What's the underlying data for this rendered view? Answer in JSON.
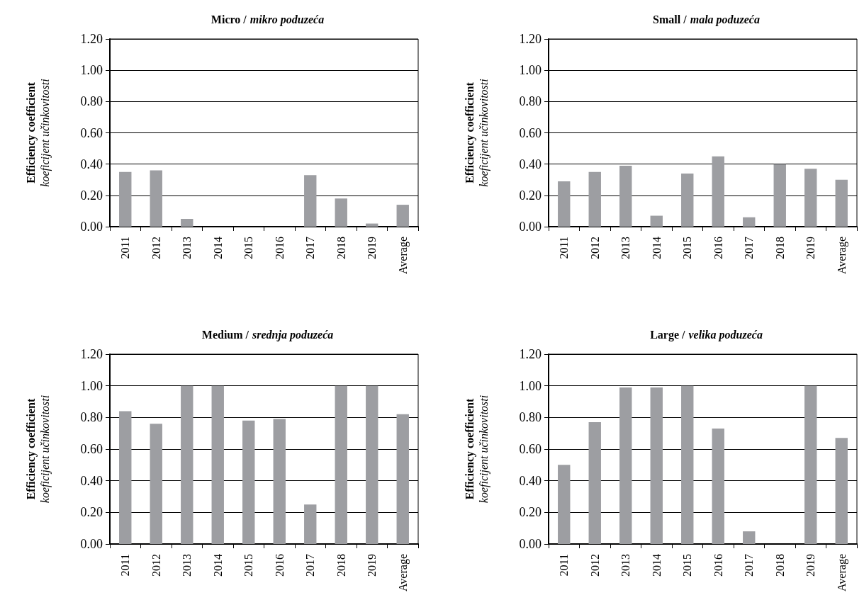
{
  "chart_data": [
    {
      "type": "bar",
      "title": "Micro / mikro poduzeća",
      "ylabel": "Efficiency coefficient\nkoeficijent učinkovitosti",
      "categories": [
        "2011",
        "2012",
        "2013",
        "2014",
        "2015",
        "2016",
        "2017",
        "2018",
        "2019",
        "Average"
      ],
      "color": "#9d9ea2",
      "values": [
        0.35,
        0.36,
        0.05,
        0,
        0,
        0,
        0.33,
        0.18,
        0.02,
        0.14
      ],
      "ylim": [
        0,
        1.2
      ],
      "yticks": [
        {
          "value": 0,
          "label": "0.00"
        },
        {
          "value": 0.2,
          "label": "0.20"
        },
        {
          "value": 0.4,
          "label": "0.40"
        },
        {
          "value": 0.6,
          "label": "0.60"
        },
        {
          "value": 0.8,
          "label": "0.80"
        },
        {
          "value": 1,
          "label": "1.00"
        },
        {
          "value": 1.2,
          "label": "1.20"
        }
      ],
      "grid": "y"
    },
    {
      "type": "bar",
      "title": "Small / mala poduzeća",
      "ylabel": "Efficiency coefficient\nkoeficijent učinkovitosti",
      "categories": [
        "2011",
        "2012",
        "2013",
        "2014",
        "2015",
        "2016",
        "2017",
        "2018",
        "2019",
        "Average"
      ],
      "color": "#9d9ea2",
      "values": [
        0.29,
        0.35,
        0.39,
        0.07,
        0.34,
        0.45,
        0.06,
        0.4,
        0.37,
        0.3
      ],
      "ylim": [
        0,
        1.2
      ],
      "yticks": [
        {
          "value": 0,
          "label": "0.00"
        },
        {
          "value": 0.2,
          "label": "0.20"
        },
        {
          "value": 0.4,
          "label": "0.40"
        },
        {
          "value": 0.6,
          "label": "0.60"
        },
        {
          "value": 0.8,
          "label": "0.80"
        },
        {
          "value": 1,
          "label": "1.00"
        },
        {
          "value": 1.2,
          "label": "1.20"
        }
      ],
      "grid": "y"
    },
    {
      "type": "bar",
      "title": "Medium / srednja poduzeća",
      "ylabel": "Efficiency coefficient\nkoeficijent učinkovitosti",
      "categories": [
        "2011",
        "2012",
        "2013",
        "2014",
        "2015",
        "2016",
        "2017",
        "2018",
        "2019",
        "Average"
      ],
      "color": "#9d9ea2",
      "values": [
        0.84,
        0.76,
        1.0,
        1.0,
        0.78,
        0.79,
        0.25,
        1.0,
        1.0,
        0.82
      ],
      "ylim": [
        0,
        1.2
      ],
      "yticks": [
        {
          "value": 0,
          "label": "0.00"
        },
        {
          "value": 0.2,
          "label": "0.20"
        },
        {
          "value": 0.4,
          "label": "0.40"
        },
        {
          "value": 0.6,
          "label": "0.60"
        },
        {
          "value": 0.8,
          "label": "0.80"
        },
        {
          "value": 1,
          "label": "1.00"
        },
        {
          "value": 1.2,
          "label": "1.20"
        }
      ],
      "grid": "y"
    },
    {
      "type": "bar",
      "title": "Large / velika poduzeća",
      "ylabel": "Efficiency coefficient\nkoeficijent učinkovitosti",
      "categories": [
        "2011",
        "2012",
        "2013",
        "2014",
        "2015",
        "2016",
        "2017",
        "2018",
        "2019",
        "Average"
      ],
      "color": "#9d9ea2",
      "values": [
        0.5,
        0.77,
        0.99,
        0.99,
        1.0,
        0.73,
        0.08,
        0,
        1.0,
        0.67
      ],
      "ylim": [
        0,
        1.2
      ],
      "yticks": [
        {
          "value": 0,
          "label": "0.00"
        },
        {
          "value": 0.2,
          "label": "0.20"
        },
        {
          "value": 0.4,
          "label": "0.40"
        },
        {
          "value": 0.6,
          "label": "0.60"
        },
        {
          "value": 0.8,
          "label": "0.80"
        },
        {
          "value": 1,
          "label": "1.00"
        },
        {
          "value": 1.2,
          "label": "1.20"
        }
      ],
      "grid": "y"
    }
  ]
}
